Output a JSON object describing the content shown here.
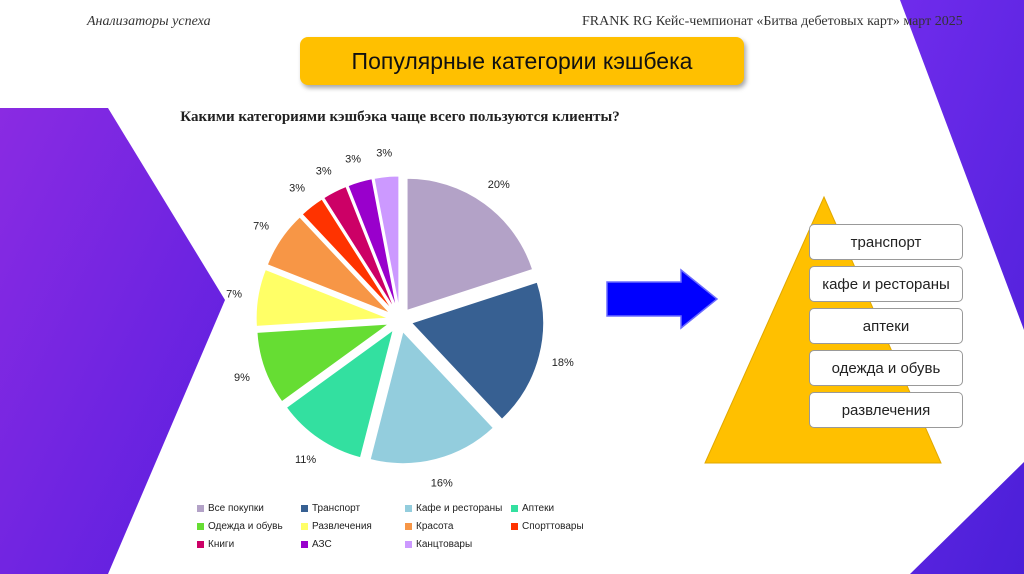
{
  "header": {
    "left": "Анализаторы успеха",
    "right": "FRANK RG Кейс-чемпионат «Битва дебетовых карт» март 2025"
  },
  "slide_title": "Популярные категории кэшбека",
  "chart_data": {
    "type": "pie",
    "title": "Какими категориями кэшбэка чаще всего пользуются клиенты?",
    "unit": "%",
    "slices": [
      {
        "label": "Все покупки",
        "value": 20,
        "color": "#b3a2c7"
      },
      {
        "label": "Транспорт",
        "value": 18,
        "color": "#376092"
      },
      {
        "label": "Кафе и рестораны",
        "value": 16,
        "color": "#93cddd"
      },
      {
        "label": "Аптеки",
        "value": 11,
        "color": "#33e0a0"
      },
      {
        "label": "Одежда и обувь",
        "value": 9,
        "color": "#66dd33"
      },
      {
        "label": "Развлечения",
        "value": 7,
        "color": "#ffff66"
      },
      {
        "label": "Красота",
        "value": 7,
        "color": "#f79646"
      },
      {
        "label": "Спорттовары",
        "value": 3,
        "color": "#ff3300"
      },
      {
        "label": "Книги",
        "value": 3,
        "color": "#cc0066"
      },
      {
        "label": "АЗС",
        "value": 3,
        "color": "#9900cc"
      },
      {
        "label": "Канцтовары",
        "value": 3,
        "color": "#cc99ff"
      }
    ],
    "legend_position": "bottom"
  },
  "pyramid": {
    "color": "#ffc000",
    "items": [
      "транспорт",
      "кафе и рестораны",
      "аптеки",
      "одежда и обувь",
      "развлечения"
    ]
  },
  "colors": {
    "background_accent": "#7b2ff2",
    "arrow": "#0000ff",
    "title_box": "#ffc000"
  }
}
